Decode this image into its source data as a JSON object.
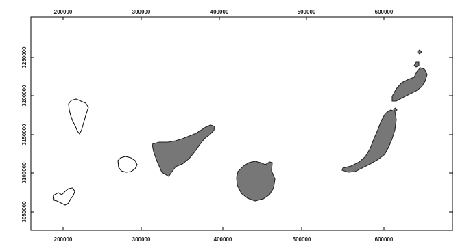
{
  "map": {
    "x_ticks": [
      "200000",
      "300000",
      "400000",
      "500000",
      "600000"
    ],
    "y_ticks": [
      "3050000",
      "3100000",
      "3150000",
      "3200000",
      "3250000"
    ],
    "fill_color": "#777777",
    "outline_color": "#111111"
  }
}
